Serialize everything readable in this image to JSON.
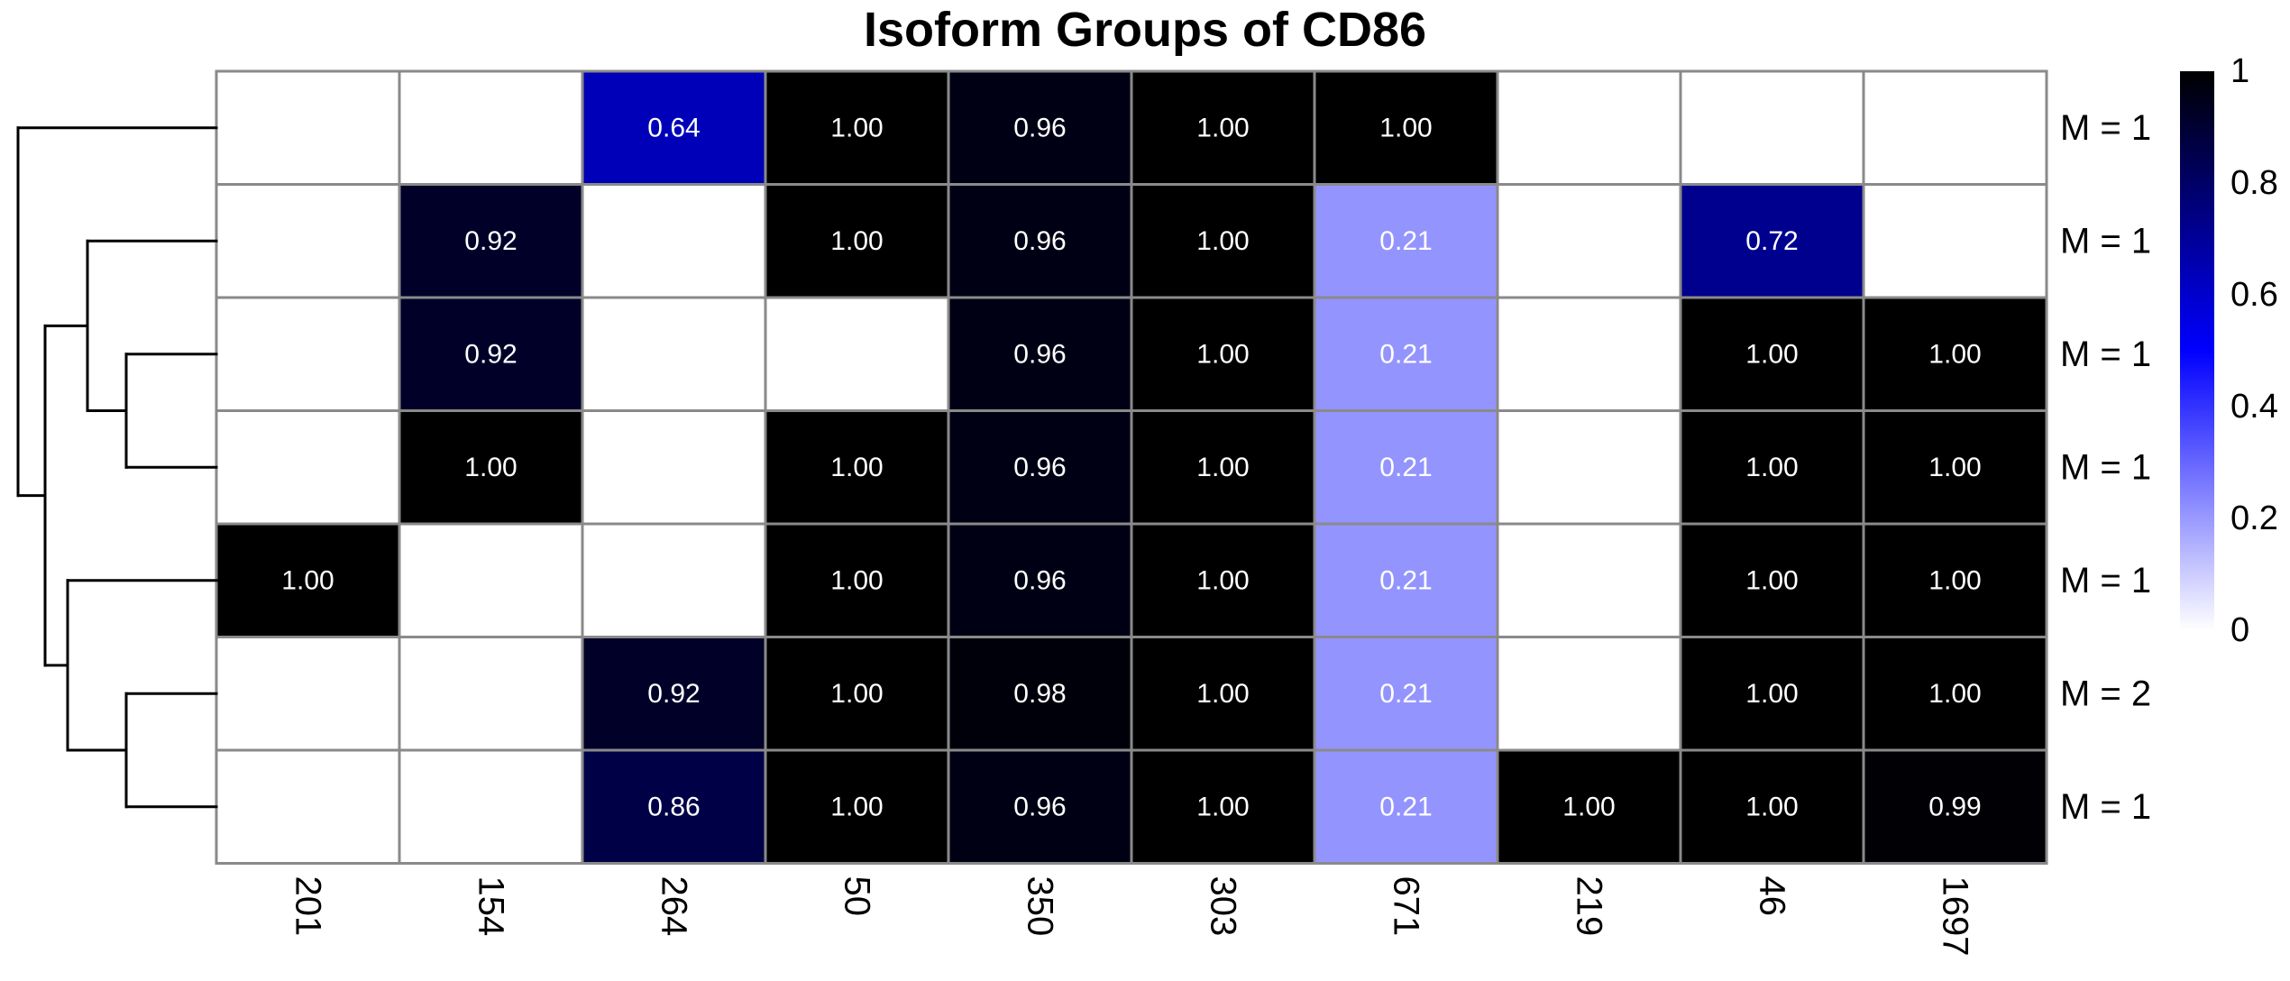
{
  "chart_data": {
    "type": "heatmap",
    "title": "Isoform Groups of CD86",
    "columns": [
      "201",
      "154",
      "264",
      "50",
      "350",
      "303",
      "671",
      "219",
      "46",
      "1697"
    ],
    "rows": [
      "M = 1",
      "M = 1",
      "M = 1",
      "M = 1",
      "M = 1",
      "M = 2",
      "M = 1"
    ],
    "values": [
      [
        null,
        null,
        0.64,
        1.0,
        0.96,
        1.0,
        1.0,
        null,
        null,
        null
      ],
      [
        null,
        0.92,
        null,
        1.0,
        0.96,
        1.0,
        0.21,
        null,
        0.72,
        null
      ],
      [
        null,
        0.92,
        null,
        null,
        0.96,
        1.0,
        0.21,
        null,
        1.0,
        1.0
      ],
      [
        null,
        1.0,
        null,
        1.0,
        0.96,
        1.0,
        0.21,
        null,
        1.0,
        1.0
      ],
      [
        1.0,
        null,
        null,
        1.0,
        0.96,
        1.0,
        0.21,
        null,
        1.0,
        1.0
      ],
      [
        null,
        null,
        0.92,
        1.0,
        0.98,
        1.0,
        0.21,
        null,
        1.0,
        1.0
      ],
      [
        null,
        null,
        0.86,
        1.0,
        0.96,
        1.0,
        0.21,
        1.0,
        1.0,
        0.99
      ]
    ],
    "labels": [
      [
        "",
        "",
        "0.64",
        "1.00",
        "0.96",
        "1.00",
        "1.00",
        "",
        "",
        ""
      ],
      [
        "",
        "0.92",
        "",
        "1.00",
        "0.96",
        "1.00",
        "0.21",
        "",
        "0.72",
        ""
      ],
      [
        "",
        "0.92",
        "",
        "",
        "0.96",
        "1.00",
        "0.21",
        "",
        "1.00",
        "1.00"
      ],
      [
        "",
        "1.00",
        "",
        "1.00",
        "0.96",
        "1.00",
        "0.21",
        "",
        "1.00",
        "1.00"
      ],
      [
        "1.00",
        "",
        "",
        "1.00",
        "0.96",
        "1.00",
        "0.21",
        "",
        "1.00",
        "1.00"
      ],
      [
        "",
        "",
        "0.92",
        "1.00",
        "0.98",
        "1.00",
        "0.21",
        "",
        "1.00",
        "1.00"
      ],
      [
        "",
        "",
        "0.86",
        "1.00",
        "0.96",
        "1.00",
        "0.21",
        "1.00",
        "1.00",
        "0.99"
      ]
    ],
    "legend": {
      "ticks": [
        1,
        0.8,
        0.6,
        0.4,
        0.2,
        0
      ],
      "tick_labels": [
        "1",
        "0.8",
        "0.6",
        "0.4",
        "0.2",
        "0"
      ],
      "range": [
        0,
        1
      ],
      "placement": "right"
    },
    "colors": {
      "low": "#ffffff",
      "mid": "#0000ff",
      "high": "#000000",
      "grid": "#8a8a8a"
    },
    "dendrogram": "rows"
  }
}
